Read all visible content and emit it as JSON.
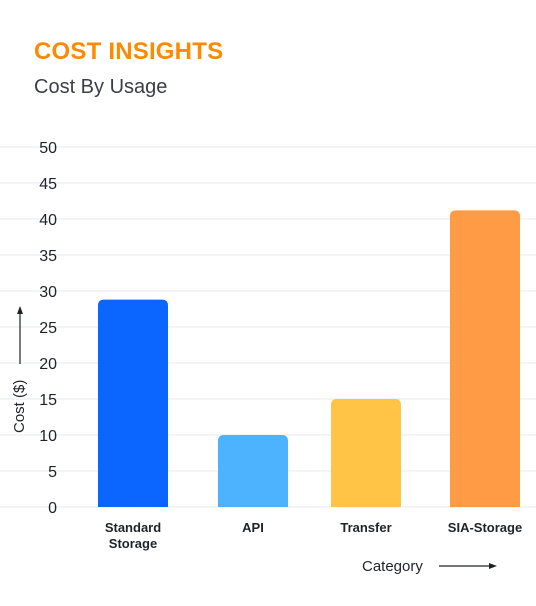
{
  "header": {
    "title": "COST INSIGHTS",
    "subtitle": "Cost By Usage"
  },
  "colors": {
    "title": "#FF8A00",
    "grid": "#e6e8eb"
  },
  "chart_data": {
    "type": "bar",
    "title": "",
    "categories": [
      [
        "Standard",
        "Storage"
      ],
      [
        "API"
      ],
      [
        "Transfer"
      ],
      [
        "SIA-Storage"
      ]
    ],
    "values": [
      28.8,
      10,
      15,
      41.2
    ],
    "bar_colors": [
      "#0A66FF",
      "#4DB3FF",
      "#FFC445",
      "#FF9A45"
    ],
    "xlabel": "Category",
    "ylabel": "Cost ($)",
    "ylim": [
      0,
      50
    ],
    "yticks": [
      0,
      5,
      10,
      15,
      20,
      25,
      30,
      35,
      40,
      45,
      50
    ],
    "grid": true
  }
}
